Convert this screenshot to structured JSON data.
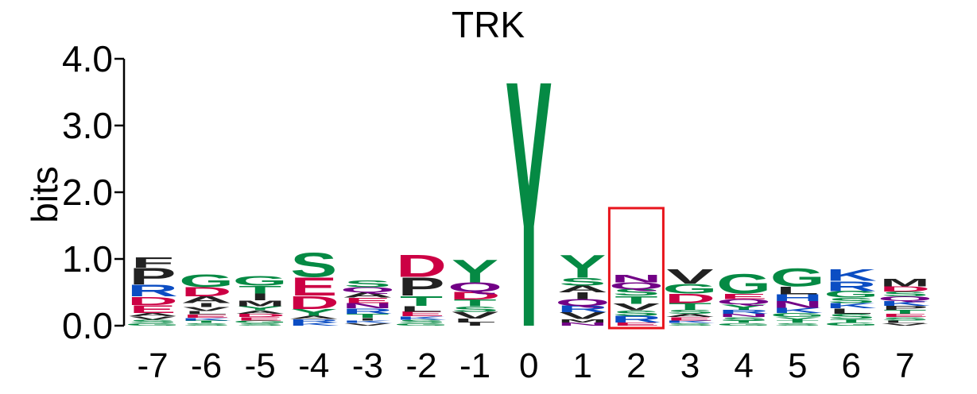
{
  "chart_data": {
    "type": "sequence-logo",
    "title": "TRK",
    "ylabel": "bits",
    "ylim": [
      0,
      4.0
    ],
    "yticks": [
      "0.0",
      "1.0",
      "2.0",
      "3.0",
      "4.0"
    ],
    "yticks_values": [
      0,
      1,
      2,
      3,
      4
    ],
    "categories": [
      "-7",
      "-6",
      "-5",
      "-4",
      "-3",
      "-2",
      "-1",
      "0",
      "1",
      "2",
      "3",
      "4",
      "5",
      "6",
      "7"
    ],
    "colors": {
      "green": "#058a44",
      "red": "#cc0044",
      "black": "#222222",
      "blue": "#0b4dc3",
      "purple": "#720086",
      "highlight": "#e8141c"
    },
    "highlight_position": "2",
    "columns": [
      {
        "pos": "-7",
        "letters": [
          {
            "aa": "G",
            "bits": 0.04,
            "color": "green"
          },
          {
            "aa": "S",
            "bits": 0.05,
            "color": "green"
          },
          {
            "aa": "V",
            "bits": 0.05,
            "color": "black"
          },
          {
            "aa": "A",
            "bits": 0.05,
            "color": "black"
          },
          {
            "aa": "E",
            "bits": 0.12,
            "color": "red"
          },
          {
            "aa": "D",
            "bits": 0.13,
            "color": "red"
          },
          {
            "aa": "R",
            "bits": 0.18,
            "color": "blue"
          },
          {
            "aa": "P",
            "bits": 0.25,
            "color": "black"
          },
          {
            "aa": "F",
            "bits": 0.16,
            "color": "black"
          }
        ]
      },
      {
        "pos": "-6",
        "letters": [
          {
            "aa": "S",
            "bits": 0.04,
            "color": "green"
          },
          {
            "aa": "T",
            "bits": 0.04,
            "color": "green"
          },
          {
            "aa": "K",
            "bits": 0.04,
            "color": "blue"
          },
          {
            "aa": "E",
            "bits": 0.05,
            "color": "red"
          },
          {
            "aa": "L",
            "bits": 0.05,
            "color": "black"
          },
          {
            "aa": "V",
            "bits": 0.06,
            "color": "black"
          },
          {
            "aa": "I",
            "bits": 0.06,
            "color": "black"
          },
          {
            "aa": "A",
            "bits": 0.1,
            "color": "black"
          },
          {
            "aa": "D",
            "bits": 0.14,
            "color": "red"
          },
          {
            "aa": "G",
            "bits": 0.2,
            "color": "green"
          }
        ]
      },
      {
        "pos": "-5",
        "letters": [
          {
            "aa": "S",
            "bits": 0.04,
            "color": "green"
          },
          {
            "aa": "G",
            "bits": 0.04,
            "color": "green"
          },
          {
            "aa": "E",
            "bits": 0.05,
            "color": "red"
          },
          {
            "aa": "D",
            "bits": 0.05,
            "color": "red"
          },
          {
            "aa": "A",
            "bits": 0.05,
            "color": "black"
          },
          {
            "aa": "Y",
            "bits": 0.06,
            "color": "green"
          },
          {
            "aa": "M",
            "bits": 0.09,
            "color": "black"
          },
          {
            "aa": "I",
            "bits": 0.1,
            "color": "black"
          },
          {
            "aa": "T",
            "bits": 0.12,
            "color": "green"
          },
          {
            "aa": "G",
            "bits": 0.15,
            "color": "green"
          }
        ]
      },
      {
        "pos": "-4",
        "letters": [
          {
            "aa": "K",
            "bits": 0.05,
            "color": "blue"
          },
          {
            "aa": "R",
            "bits": 0.05,
            "color": "blue"
          },
          {
            "aa": "A",
            "bits": 0.05,
            "color": "black"
          },
          {
            "aa": "Y",
            "bits": 0.1,
            "color": "green"
          },
          {
            "aa": "D",
            "bits": 0.2,
            "color": "red"
          },
          {
            "aa": "E",
            "bits": 0.28,
            "color": "red"
          },
          {
            "aa": "S",
            "bits": 0.37,
            "color": "green"
          }
        ]
      },
      {
        "pos": "-3",
        "letters": [
          {
            "aa": "V",
            "bits": 0.04,
            "color": "black"
          },
          {
            "aa": "K",
            "bits": 0.04,
            "color": "blue"
          },
          {
            "aa": "I",
            "bits": 0.04,
            "color": "black"
          },
          {
            "aa": "T",
            "bits": 0.06,
            "color": "green"
          },
          {
            "aa": "R",
            "bits": 0.08,
            "color": "blue"
          },
          {
            "aa": "N",
            "bits": 0.08,
            "color": "purple"
          },
          {
            "aa": "E",
            "bits": 0.08,
            "color": "red"
          },
          {
            "aa": "A",
            "bits": 0.08,
            "color": "black"
          },
          {
            "aa": "Q",
            "bits": 0.08,
            "color": "purple"
          },
          {
            "aa": "S",
            "bits": 0.1,
            "color": "green"
          }
        ]
      },
      {
        "pos": "-2",
        "letters": [
          {
            "aa": "G",
            "bits": 0.04,
            "color": "green"
          },
          {
            "aa": "S",
            "bits": 0.05,
            "color": "green"
          },
          {
            "aa": "K",
            "bits": 0.05,
            "color": "blue"
          },
          {
            "aa": "E",
            "bits": 0.07,
            "color": "red"
          },
          {
            "aa": "L",
            "bits": 0.09,
            "color": "black"
          },
          {
            "aa": "T",
            "bits": 0.15,
            "color": "green"
          },
          {
            "aa": "P",
            "bits": 0.28,
            "color": "black"
          },
          {
            "aa": "D",
            "bits": 0.34,
            "color": "red"
          }
        ]
      },
      {
        "pos": "-1",
        "letters": [
          {
            "aa": "I",
            "bits": 0.05,
            "color": "black"
          },
          {
            "aa": "L",
            "bits": 0.06,
            "color": "black"
          },
          {
            "aa": "V",
            "bits": 0.1,
            "color": "black"
          },
          {
            "aa": "S",
            "bits": 0.08,
            "color": "green"
          },
          {
            "aa": "T",
            "bits": 0.1,
            "color": "green"
          },
          {
            "aa": "D",
            "bits": 0.12,
            "color": "red"
          },
          {
            "aa": "Q",
            "bits": 0.14,
            "color": "purple"
          },
          {
            "aa": "Y",
            "bits": 0.35,
            "color": "green"
          }
        ]
      },
      {
        "pos": "0",
        "letters": [
          {
            "aa": "Y",
            "bits": 3.8,
            "color": "green"
          }
        ]
      },
      {
        "pos": "1",
        "letters": [
          {
            "aa": "N",
            "bits": 0.05,
            "color": "purple"
          },
          {
            "aa": "M",
            "bits": 0.05,
            "color": "black"
          },
          {
            "aa": "V",
            "bits": 0.1,
            "color": "black"
          },
          {
            "aa": "R",
            "bits": 0.1,
            "color": "blue"
          },
          {
            "aa": "Q",
            "bits": 0.1,
            "color": "purple"
          },
          {
            "aa": "I",
            "bits": 0.1,
            "color": "black"
          },
          {
            "aa": "A",
            "bits": 0.1,
            "color": "black"
          },
          {
            "aa": "S",
            "bits": 0.12,
            "color": "green"
          },
          {
            "aa": "Y",
            "bits": 0.35,
            "color": "green"
          }
        ]
      },
      {
        "pos": "2",
        "letters": [
          {
            "aa": "E",
            "bits": 0.05,
            "color": "red"
          },
          {
            "aa": "R",
            "bits": 0.1,
            "color": "blue"
          },
          {
            "aa": "S",
            "bits": 0.08,
            "color": "green"
          },
          {
            "aa": "V",
            "bits": 0.1,
            "color": "black"
          },
          {
            "aa": "T",
            "bits": 0.12,
            "color": "green"
          },
          {
            "aa": "S",
            "bits": 0.1,
            "color": "green"
          },
          {
            "aa": "Q",
            "bits": 0.1,
            "color": "purple"
          },
          {
            "aa": "N",
            "bits": 0.12,
            "color": "purple"
          }
        ]
      },
      {
        "pos": "3",
        "letters": [
          {
            "aa": "S",
            "bits": 0.04,
            "color": "green"
          },
          {
            "aa": "K",
            "bits": 0.04,
            "color": "blue"
          },
          {
            "aa": "E",
            "bits": 0.05,
            "color": "red"
          },
          {
            "aa": "A",
            "bits": 0.05,
            "color": "black"
          },
          {
            "aa": "S",
            "bits": 0.06,
            "color": "green"
          },
          {
            "aa": "T",
            "bits": 0.1,
            "color": "green"
          },
          {
            "aa": "D",
            "bits": 0.14,
            "color": "red"
          },
          {
            "aa": "G",
            "bits": 0.15,
            "color": "green"
          },
          {
            "aa": "V",
            "bits": 0.22,
            "color": "black"
          }
        ]
      },
      {
        "pos": "4",
        "letters": [
          {
            "aa": "G",
            "bits": 0.04,
            "color": "green"
          },
          {
            "aa": "T",
            "bits": 0.04,
            "color": "green"
          },
          {
            "aa": "S",
            "bits": 0.05,
            "color": "green"
          },
          {
            "aa": "N",
            "bits": 0.05,
            "color": "purple"
          },
          {
            "aa": "R",
            "bits": 0.06,
            "color": "blue"
          },
          {
            "aa": "Y",
            "bits": 0.08,
            "color": "green"
          },
          {
            "aa": "Q",
            "bits": 0.08,
            "color": "purple"
          },
          {
            "aa": "E",
            "bits": 0.08,
            "color": "red"
          },
          {
            "aa": "G",
            "bits": 0.3,
            "color": "green"
          }
        ]
      },
      {
        "pos": "5",
        "letters": [
          {
            "aa": "S",
            "bits": 0.04,
            "color": "green"
          },
          {
            "aa": "T",
            "bits": 0.04,
            "color": "green"
          },
          {
            "aa": "Y",
            "bits": 0.05,
            "color": "green"
          },
          {
            "aa": "G",
            "bits": 0.06,
            "color": "green"
          },
          {
            "aa": "K",
            "bits": 0.08,
            "color": "blue"
          },
          {
            "aa": "N",
            "bits": 0.1,
            "color": "purple"
          },
          {
            "aa": "H",
            "bits": 0.1,
            "color": "blue"
          },
          {
            "aa": "L",
            "bits": 0.12,
            "color": "black"
          },
          {
            "aa": "G",
            "bits": 0.28,
            "color": "green"
          }
        ]
      },
      {
        "pos": "6",
        "letters": [
          {
            "aa": "G",
            "bits": 0.05,
            "color": "green"
          },
          {
            "aa": "T",
            "bits": 0.05,
            "color": "green"
          },
          {
            "aa": "S",
            "bits": 0.08,
            "color": "green"
          },
          {
            "aa": "L",
            "bits": 0.08,
            "color": "black"
          },
          {
            "aa": "K",
            "bits": 0.08,
            "color": "blue"
          },
          {
            "aa": "S",
            "bits": 0.08,
            "color": "green"
          },
          {
            "aa": "G",
            "bits": 0.1,
            "color": "green"
          },
          {
            "aa": "R",
            "bits": 0.15,
            "color": "blue"
          },
          {
            "aa": "K",
            "bits": 0.18,
            "color": "blue"
          }
        ]
      },
      {
        "pos": "7",
        "letters": [
          {
            "aa": "V",
            "bits": 0.04,
            "color": "black"
          },
          {
            "aa": "L",
            "bits": 0.04,
            "color": "black"
          },
          {
            "aa": "S",
            "bits": 0.05,
            "color": "green"
          },
          {
            "aa": "E",
            "bits": 0.05,
            "color": "red"
          },
          {
            "aa": "T",
            "bits": 0.06,
            "color": "green"
          },
          {
            "aa": "P",
            "bits": 0.06,
            "color": "black"
          },
          {
            "aa": "K",
            "bits": 0.07,
            "color": "blue"
          },
          {
            "aa": "Q",
            "bits": 0.07,
            "color": "purple"
          },
          {
            "aa": "S",
            "bits": 0.07,
            "color": "green"
          },
          {
            "aa": "D",
            "bits": 0.08,
            "color": "red"
          },
          {
            "aa": "M",
            "bits": 0.12,
            "color": "black"
          }
        ]
      }
    ]
  }
}
